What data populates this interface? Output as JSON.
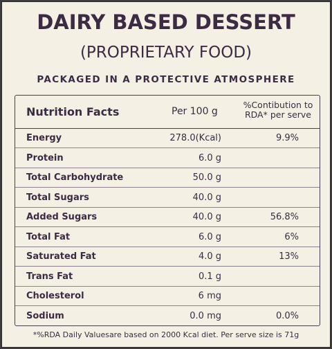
{
  "header": {
    "title": "DAIRY BASED DESSERT",
    "subtitle": "(PROPRIETARY FOOD)",
    "packaged": "PACKAGED IN A PROTECTIVE ATMOSPHERE"
  },
  "table": {
    "col_name": "Nutrition Facts",
    "col_per": "Per 100 g",
    "col_rda_line1": "%Contibution to",
    "col_rda_line2": "RDA* per serve",
    "rows": [
      {
        "name": "Energy",
        "per": "278.0(Kcal)",
        "rda": "9.9%"
      },
      {
        "name": "Protein",
        "per": "6.0 g",
        "rda": ""
      },
      {
        "name": "Total Carbohydrate",
        "per": "50.0 g",
        "rda": ""
      },
      {
        "name": "Total Sugars",
        "per": "40.0 g",
        "rda": ""
      },
      {
        "name": "Added Sugars",
        "per": "40.0 g",
        "rda": "56.8%"
      },
      {
        "name": "Total Fat",
        "per": "6.0 g",
        "rda": "6%"
      },
      {
        "name": "Saturated Fat",
        "per": "4.0 g",
        "rda": "13%"
      },
      {
        "name": "Trans Fat",
        "per": "0.1 g",
        "rda": ""
      },
      {
        "name": "Cholesterol",
        "per": "6 mg",
        "rda": ""
      },
      {
        "name": "Sodium",
        "per": "0.0 mg",
        "rda": "0.0%"
      }
    ]
  },
  "footnote": "*%RDA Daily Valuesare based on 2000 Kcal diet. Per serve size is 71g",
  "colors": {
    "background": "#f4f0e3",
    "text": "#3d2a44",
    "border": "#4a3e4c"
  }
}
